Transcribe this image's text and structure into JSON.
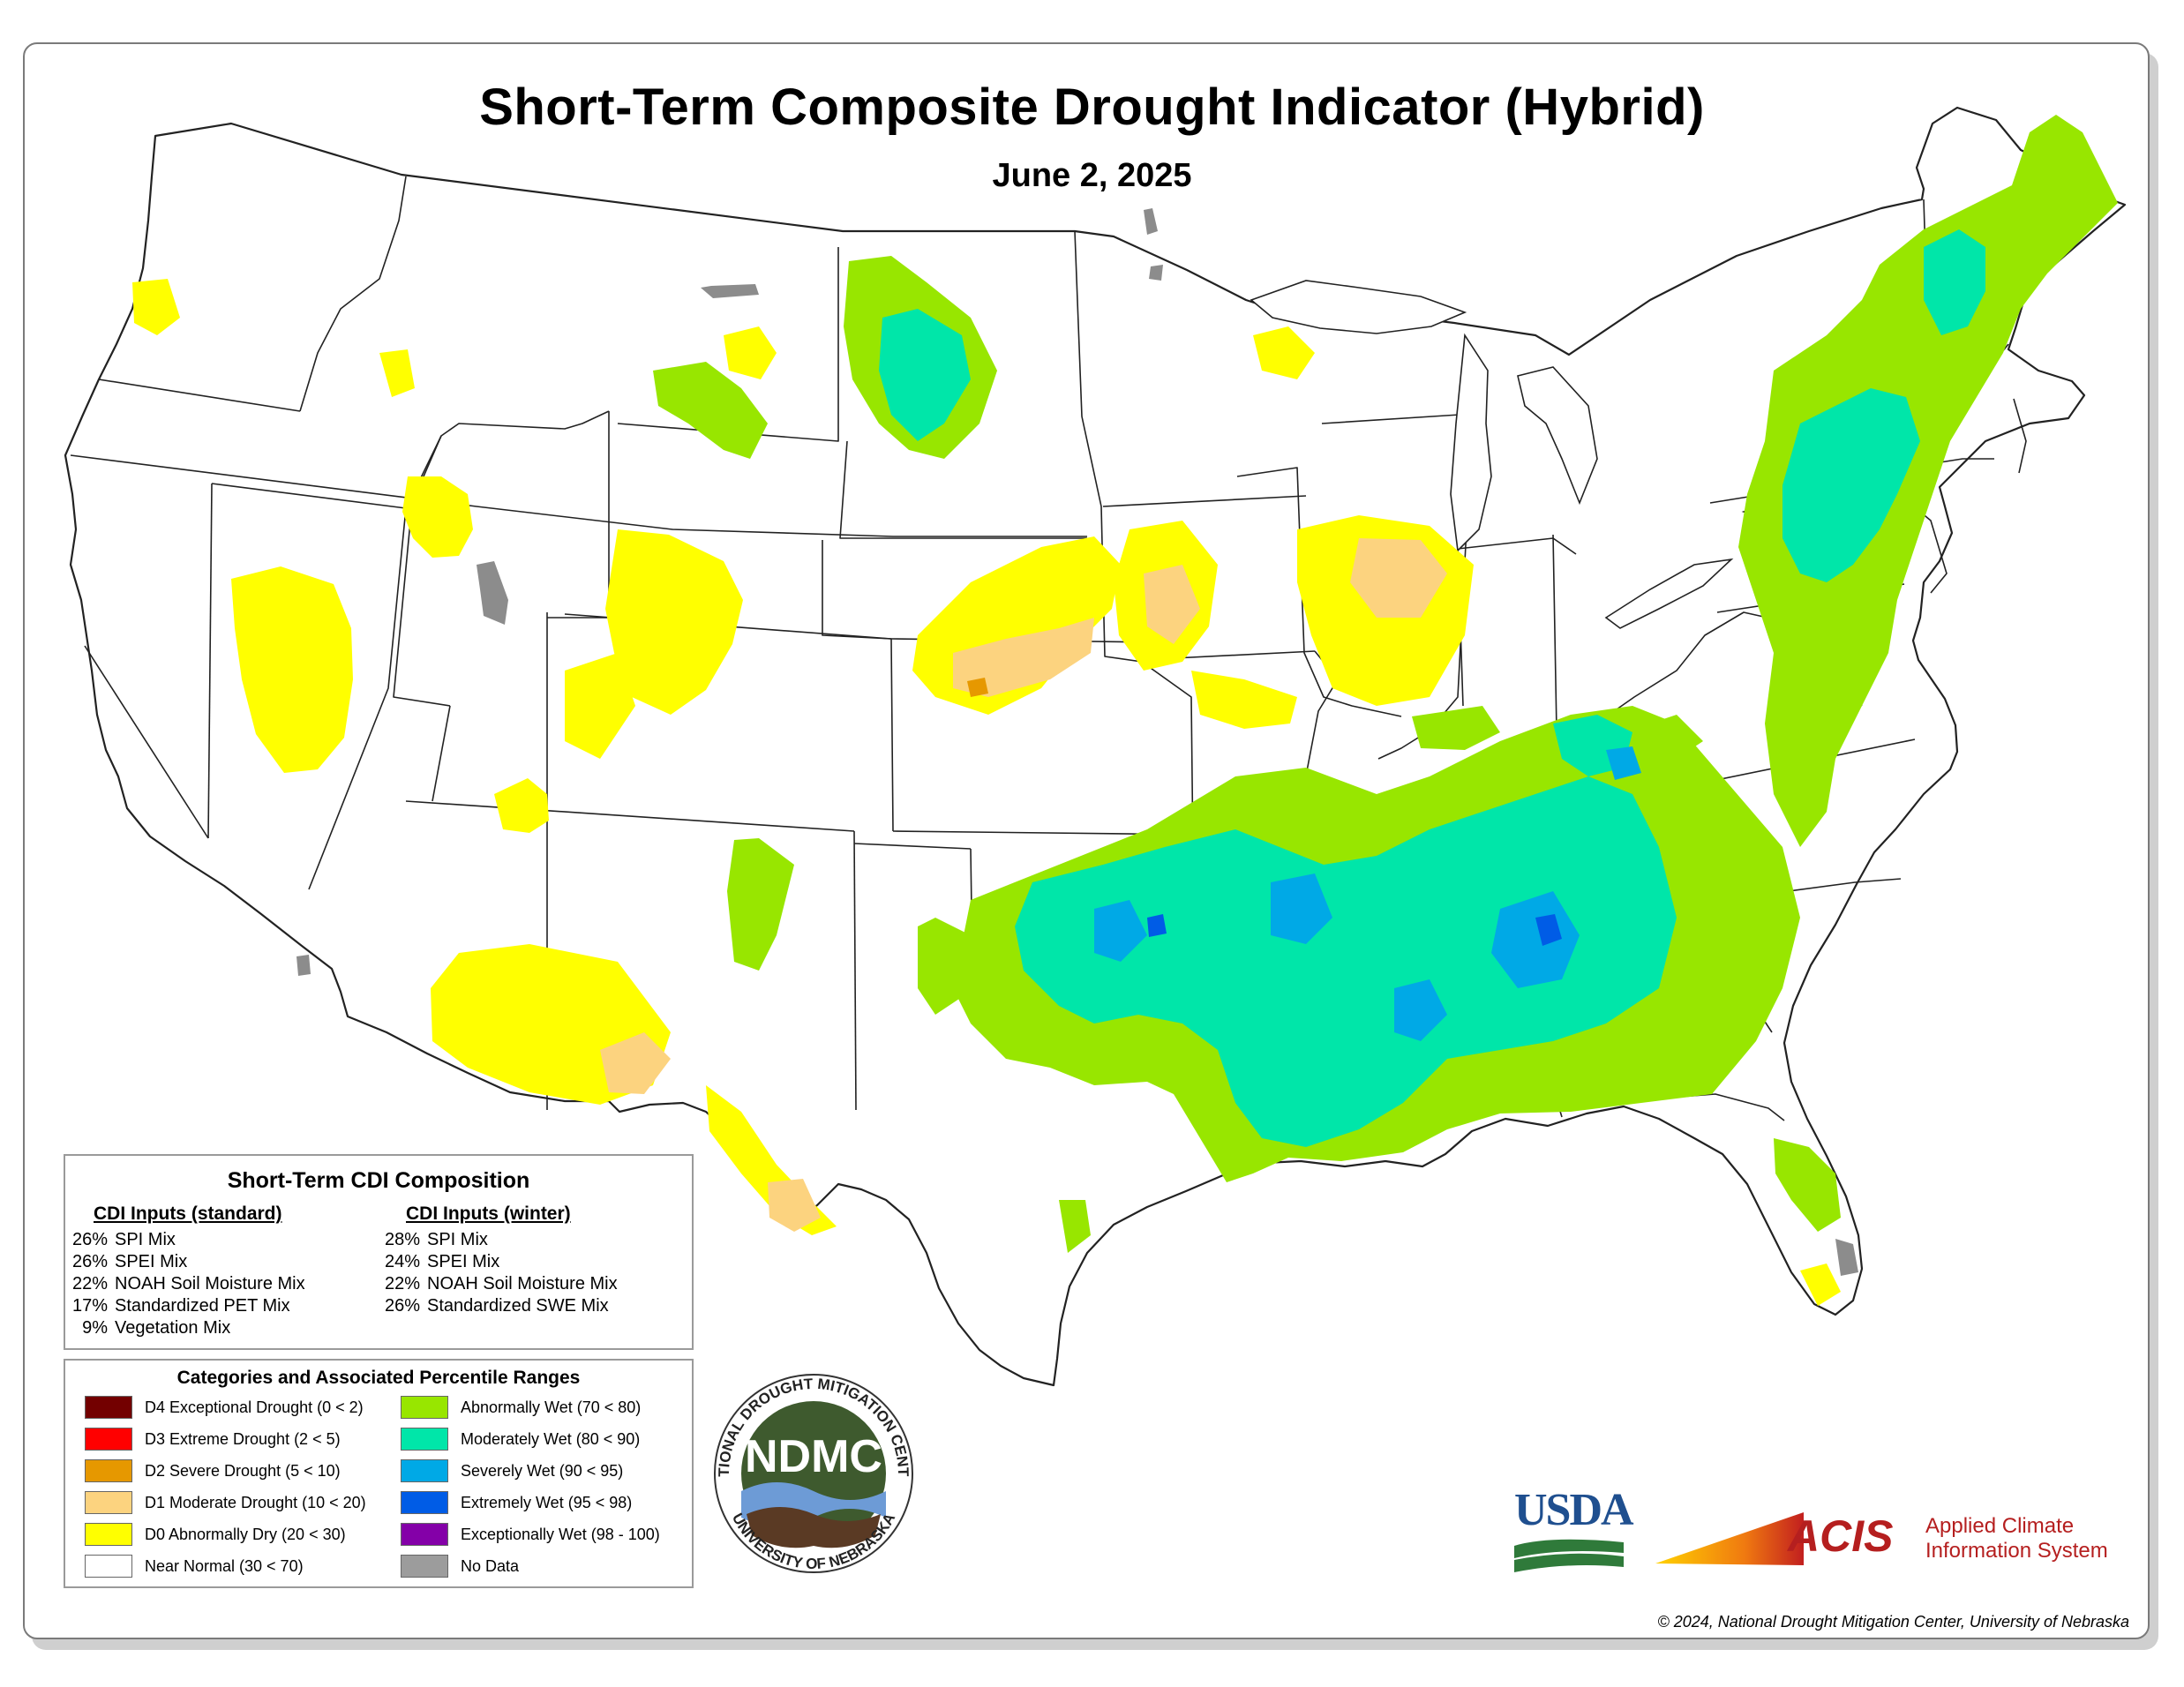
{
  "title": "Short-Term Composite Drought Indicator (Hybrid)",
  "date": "June 2, 2025",
  "composition": {
    "title": "Short-Term CDI Composition",
    "standard": {
      "heading": "CDI Inputs (standard)",
      "items": [
        {
          "pct": "26%",
          "label": "SPI Mix"
        },
        {
          "pct": "26%",
          "label": "SPEI Mix"
        },
        {
          "pct": "22%",
          "label": "NOAH Soil Moisture Mix"
        },
        {
          "pct": "17%",
          "label": "Standardized PET Mix"
        },
        {
          "pct": "9%",
          "label": "Vegetation Mix"
        }
      ]
    },
    "winter": {
      "heading": "CDI Inputs (winter)",
      "items": [
        {
          "pct": "28%",
          "label": "SPI Mix"
        },
        {
          "pct": "24%",
          "label": "SPEI Mix"
        },
        {
          "pct": "22%",
          "label": "NOAH Soil Moisture Mix"
        },
        {
          "pct": "26%",
          "label": "Standardized SWE Mix"
        }
      ]
    }
  },
  "legend": {
    "title": "Categories and Associated Percentile Ranges",
    "left": [
      {
        "label": "D4 Exceptional Drought (0 < 2)",
        "color": "#730000"
      },
      {
        "label": "D3 Extreme Drought (2 < 5)",
        "color": "#ff0000"
      },
      {
        "label": "D2 Severe Drought (5 < 10)",
        "color": "#e69800"
      },
      {
        "label": "D1 Moderate Drought (10 < 20)",
        "color": "#fcd37f"
      },
      {
        "label": "D0 Abnormally Dry (20 < 30)",
        "color": "#ffff00"
      },
      {
        "label": "Near Normal (30 < 70)",
        "color": "#ffffff"
      }
    ],
    "right": [
      {
        "label": "Abnormally Wet (70 < 80)",
        "color": "#98e600"
      },
      {
        "label": "Moderately Wet (80 < 90)",
        "color": "#00e6a9"
      },
      {
        "label": "Severely Wet (90 < 95)",
        "color": "#00a9e6"
      },
      {
        "label": "Extremely Wet (95 < 98)",
        "color": "#005ce6"
      },
      {
        "label": "Exceptionally Wet (98 - 100)",
        "color": "#8400a8"
      },
      {
        "label": "No Data",
        "color": "#9c9c9c"
      }
    ]
  },
  "logos": {
    "ndmc_ring_top": "NATIONAL DROUGHT MITIGATION CENTER",
    "ndmc_ring_bottom": "UNIVERSITY OF NEBRASKA",
    "ndmc_center": "NDMC",
    "usda": "USDA",
    "acis": "ACIS",
    "acis_line1": "Applied Climate",
    "acis_line2": "Information System"
  },
  "copyright": "© 2024, National Drought Mitigation Center, University of Nebraska"
}
